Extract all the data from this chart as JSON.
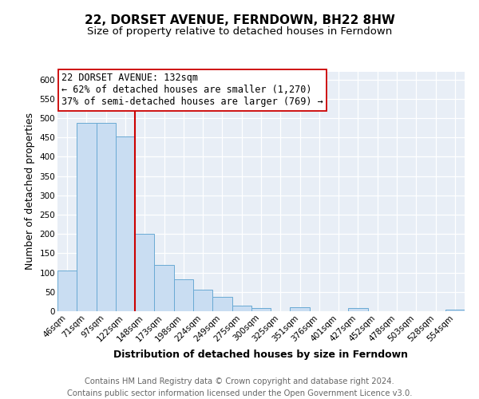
{
  "title": "22, DORSET AVENUE, FERNDOWN, BH22 8HW",
  "subtitle": "Size of property relative to detached houses in Ferndown",
  "xlabel": "Distribution of detached houses by size in Ferndown",
  "ylabel": "Number of detached properties",
  "footer_line1": "Contains HM Land Registry data © Crown copyright and database right 2024.",
  "footer_line2": "Contains public sector information licensed under the Open Government Licence v3.0.",
  "bin_labels": [
    "46sqm",
    "71sqm",
    "97sqm",
    "122sqm",
    "148sqm",
    "173sqm",
    "198sqm",
    "224sqm",
    "249sqm",
    "275sqm",
    "300sqm",
    "325sqm",
    "351sqm",
    "376sqm",
    "401sqm",
    "427sqm",
    "452sqm",
    "478sqm",
    "503sqm",
    "528sqm",
    "554sqm"
  ],
  "bar_heights": [
    105,
    488,
    488,
    453,
    201,
    120,
    83,
    55,
    37,
    15,
    8,
    0,
    10,
    0,
    0,
    8,
    0,
    0,
    0,
    0,
    5
  ],
  "bar_color": "#c9ddf2",
  "bar_edge_color": "#6aaad4",
  "bar_edge_width": 0.7,
  "vline_x_idx": 3,
  "vline_color": "#cc0000",
  "ann_title": "22 DORSET AVENUE: 132sqm",
  "ann_line1": "← 62% of detached houses are smaller (1,270)",
  "ann_line2": "37% of semi-detached houses are larger (769) →",
  "annotation_box_color": "#ffffff",
  "annotation_box_edge": "#cc0000",
  "ylim_max": 620,
  "yticks": [
    0,
    50,
    100,
    150,
    200,
    250,
    300,
    350,
    400,
    450,
    500,
    550,
    600
  ],
  "fig_bg_color": "#ffffff",
  "title_bg_color": "#ffffff",
  "plot_area_bg": "#e8eef6",
  "grid_color": "#ffffff",
  "title_fontsize": 11,
  "subtitle_fontsize": 9.5,
  "axis_label_fontsize": 9,
  "tick_fontsize": 7.5,
  "ann_fontsize": 8.5,
  "footer_fontsize": 7.2
}
